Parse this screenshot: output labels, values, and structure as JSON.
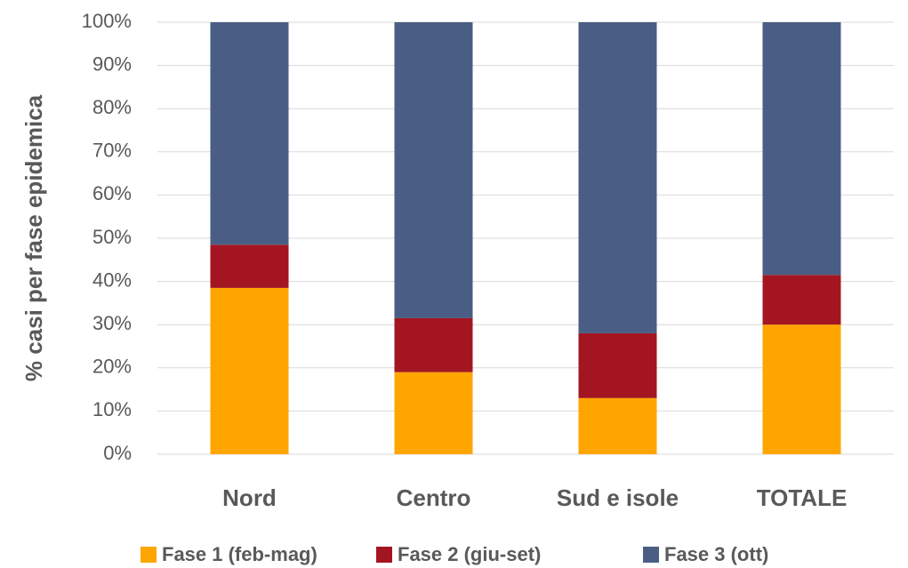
{
  "chart_data": {
    "type": "stacked_bar",
    "y_axis_label": "% casi per fase epidemica",
    "categories": [
      "Nord",
      "Centro",
      "Sud e isole",
      "TOTALE"
    ],
    "series": [
      {
        "name": "Fase 1 (feb-mag)",
        "color": "#ffa500",
        "values": [
          38.5,
          19,
          13,
          30
        ]
      },
      {
        "name": "Fase 2 (giu-set)",
        "color": "#a31621",
        "values": [
          10,
          12.5,
          15,
          11.5
        ]
      },
      {
        "name": "Fase 3 (ott)",
        "color": "#4a5e85",
        "values": [
          51.5,
          68.5,
          72,
          58.5
        ]
      }
    ],
    "ylim": [
      0,
      100
    ],
    "yticks": [
      {
        "value": 0,
        "label": "0%"
      },
      {
        "value": 10,
        "label": "10%"
      },
      {
        "value": 20,
        "label": "20%"
      },
      {
        "value": 30,
        "label": "30%"
      },
      {
        "value": 40,
        "label": "40%"
      },
      {
        "value": 50,
        "label": "50%"
      },
      {
        "value": 60,
        "label": "60%"
      },
      {
        "value": 70,
        "label": "70%"
      },
      {
        "value": 80,
        "label": "80%"
      },
      {
        "value": 90,
        "label": "90%"
      },
      {
        "value": 100,
        "label": "100%"
      }
    ],
    "grid": true
  }
}
